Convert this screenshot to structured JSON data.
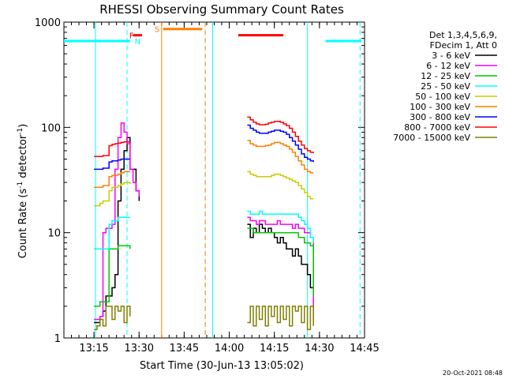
{
  "chart_data": {
    "type": "line",
    "title": "RHESSI Observing Summary Count Rates",
    "xlabel": "Start Time (30-Jun-13 13:05:02)",
    "ylabel_main": "Count Rate (s",
    "ylabel_sup1": "-1",
    "ylabel_mid": " detector",
    "ylabel_sup2": "-1",
    "ylabel_end": ")",
    "y_scale": "log",
    "ylim": [
      1,
      1000
    ],
    "xlim_minutes": [
      0,
      100
    ],
    "x_ticks": [
      {
        "label": "13:15",
        "min": 10
      },
      {
        "label": "13:30",
        "min": 25
      },
      {
        "label": "13:45",
        "min": 40
      },
      {
        "label": "14:00",
        "min": 55
      },
      {
        "label": "14:15",
        "min": 70
      },
      {
        "label": "14:30",
        "min": 85
      },
      {
        "label": "14:45",
        "min": 100
      }
    ],
    "y_ticks": [
      {
        "label": "1",
        "v": 1
      },
      {
        "label": "10",
        "v": 10
      },
      {
        "label": "100",
        "v": 100
      },
      {
        "label": "1000",
        "v": 1000
      }
    ],
    "legend_header": [
      "Det 1,3,4,5,6,9,",
      "FDecim 1, Att 0"
    ],
    "series": [
      {
        "name": "3 - 6 keV",
        "color": "#000000",
        "x": [
          10,
          11,
          12,
          13,
          14,
          16,
          17,
          18,
          19,
          20,
          21,
          22,
          24,
          25
        ],
        "y": [
          1.4,
          1.4,
          1.6,
          1.8,
          2.5,
          3,
          4,
          20,
          40,
          60,
          80,
          40,
          25,
          20
        ],
        "x2": [
          61,
          62,
          63,
          64,
          65,
          66,
          67,
          68,
          69,
          70,
          71,
          72,
          73,
          74,
          75,
          76,
          77,
          78,
          79,
          80,
          81,
          82,
          83
        ],
        "y2": [
          12,
          9,
          11,
          10,
          12,
          11,
          10,
          11,
          10,
          9,
          8,
          9,
          8,
          7,
          7,
          6,
          7,
          6,
          5,
          5,
          4,
          3,
          3
        ]
      },
      {
        "name": "6 - 12 keV",
        "color": "#ff00ff",
        "x": [
          10,
          11,
          12,
          13,
          14,
          15,
          16,
          17,
          18,
          19,
          20,
          21,
          22,
          23,
          24,
          25
        ],
        "y": [
          1.5,
          1.5,
          1.6,
          10,
          11,
          11,
          12,
          40,
          80,
          110,
          90,
          70,
          40,
          30,
          25,
          22
        ],
        "x2": [
          61,
          62,
          63,
          64,
          65,
          66,
          67,
          68,
          69,
          70,
          71,
          72,
          73,
          74,
          75,
          76,
          77,
          78,
          79,
          80,
          81,
          82,
          83
        ],
        "y2": [
          14,
          13,
          13,
          12,
          13,
          13,
          12,
          12,
          12,
          12,
          13,
          12,
          12,
          12,
          12,
          11,
          12,
          11,
          11,
          10,
          10,
          9,
          1.5
        ]
      },
      {
        "name": "12 - 25 keV",
        "color": "#00cc00",
        "x": [
          10,
          11,
          12,
          13,
          14,
          15,
          16,
          17,
          18,
          19,
          20,
          21,
          22
        ],
        "y": [
          2,
          2,
          2.2,
          2.2,
          2.2,
          7,
          7,
          7,
          7.5,
          7.5,
          7.5,
          7.5,
          7
        ],
        "x2": [
          61,
          62,
          63,
          64,
          65,
          66,
          67,
          68,
          69,
          70,
          71,
          72,
          73,
          74,
          75,
          76,
          77,
          78,
          79,
          80,
          81,
          82,
          83
        ],
        "y2": [
          11,
          11,
          10,
          10,
          10,
          10,
          10,
          10,
          10,
          10,
          10,
          10,
          10,
          10,
          10,
          10,
          10,
          9,
          9,
          8,
          8,
          7.5,
          2.5
        ]
      },
      {
        "name": "25 - 50 keV",
        "color": "#00ffff",
        "x": [
          10,
          11,
          12,
          13,
          14,
          15,
          16,
          17,
          18,
          19,
          20,
          21,
          22
        ],
        "y": [
          7,
          7,
          7,
          7,
          7,
          12,
          13,
          13,
          14,
          14,
          14,
          14,
          14
        ],
        "x2": [
          61,
          62,
          63,
          64,
          65,
          66,
          67,
          68,
          69,
          70,
          71,
          72,
          73,
          74,
          75,
          76,
          77,
          78,
          79,
          80,
          81,
          82,
          83
        ],
        "y2": [
          16,
          15,
          15,
          15,
          16,
          15,
          15,
          15,
          15,
          15,
          15,
          15,
          15,
          15,
          15,
          15,
          15,
          14,
          13,
          12,
          11,
          9,
          8
        ]
      },
      {
        "name": "50 - 100 keV",
        "color": "#cccc00",
        "x": [
          10,
          11,
          12,
          13,
          14,
          15,
          16,
          17,
          18,
          19,
          20,
          21,
          22
        ],
        "y": [
          18,
          18,
          19,
          20,
          20,
          25,
          27,
          27,
          28,
          29,
          30,
          30,
          29
        ],
        "x2": [
          61,
          62,
          63,
          64,
          65,
          66,
          67,
          68,
          69,
          70,
          71,
          72,
          73,
          74,
          75,
          76,
          77,
          78,
          79,
          80,
          81,
          82,
          83
        ],
        "y2": [
          38,
          36,
          35,
          34,
          34,
          34,
          34,
          34,
          35,
          36,
          36,
          35,
          34,
          33,
          32,
          31,
          30,
          28,
          26,
          24,
          22,
          21,
          21
        ]
      },
      {
        "name": "100 - 300 keV",
        "color": "#ff7f00",
        "x": [
          10,
          11,
          12,
          13,
          14,
          15,
          16,
          17,
          18,
          19,
          20,
          21,
          22
        ],
        "y": [
          27,
          27,
          27,
          28,
          28,
          34,
          35,
          35,
          36,
          37,
          38,
          38,
          38
        ],
        "x2": [
          61,
          62,
          63,
          64,
          65,
          66,
          67,
          68,
          69,
          70,
          71,
          72,
          73,
          74,
          75,
          76,
          77,
          78,
          79,
          80,
          81,
          82,
          83
        ],
        "y2": [
          75,
          70,
          68,
          66,
          66,
          66,
          67,
          68,
          70,
          72,
          72,
          70,
          68,
          66,
          62,
          58,
          53,
          48,
          44,
          40,
          38,
          37,
          37
        ]
      },
      {
        "name": "300 - 800 keV",
        "color": "#0000ff",
        "x": [
          10,
          11,
          12,
          13,
          14,
          15,
          16,
          17,
          18,
          19,
          20,
          21,
          22
        ],
        "y": [
          40,
          40,
          40,
          41,
          41,
          47,
          48,
          48,
          49,
          50,
          50,
          50,
          50
        ],
        "x2": [
          61,
          62,
          63,
          64,
          65,
          66,
          67,
          68,
          69,
          70,
          71,
          72,
          73,
          74,
          75,
          76,
          77,
          78,
          79,
          80,
          81,
          82,
          83
        ],
        "y2": [
          105,
          98,
          94,
          90,
          88,
          88,
          88,
          90,
          92,
          94,
          94,
          92,
          90,
          86,
          80,
          74,
          68,
          62,
          56,
          52,
          50,
          48,
          47
        ]
      },
      {
        "name": "800 - 7000 keV",
        "color": "#ff0000",
        "x": [
          10,
          11,
          12,
          13,
          14,
          15,
          16,
          17,
          18,
          19,
          20,
          21,
          22
        ],
        "y": [
          53,
          53,
          53,
          54,
          54,
          67,
          69,
          70,
          71,
          72,
          73,
          73,
          73
        ],
        "x2": [
          61,
          62,
          63,
          64,
          65,
          66,
          67,
          68,
          69,
          70,
          71,
          72,
          73,
          74,
          75,
          76,
          77,
          78,
          79,
          80,
          81,
          82,
          83
        ],
        "y2": [
          125,
          118,
          112,
          108,
          106,
          106,
          107,
          110,
          112,
          114,
          114,
          112,
          108,
          104,
          98,
          90,
          82,
          74,
          68,
          63,
          60,
          58,
          57
        ]
      },
      {
        "name": "7000 - 15000 keV",
        "color": "#808000",
        "x": [
          10,
          11,
          12,
          13,
          14,
          15,
          16,
          17,
          18,
          19,
          20,
          21,
          22
        ],
        "y": [
          1.2,
          1.3,
          1.5,
          1.3,
          2,
          2,
          1.5,
          2,
          1.8,
          2,
          1.4,
          2,
          1.6
        ],
        "x2": [
          61,
          62,
          63,
          64,
          65,
          66,
          67,
          68,
          69,
          70,
          71,
          72,
          73,
          74,
          75,
          76,
          77,
          78,
          79,
          80,
          81,
          82,
          83
        ],
        "y2": [
          1.4,
          2,
          1.3,
          2,
          1.5,
          2,
          1.3,
          2,
          1.6,
          2,
          1.4,
          2,
          1.5,
          2,
          1.3,
          2,
          1.8,
          2,
          1.4,
          2,
          1.2,
          2,
          1.3
        ]
      }
    ],
    "flags": [
      {
        "label": "F",
        "color": "#ff0000",
        "label_x": 22.5,
        "x": [
          23,
          26
        ],
        "level": 750
      },
      {
        "label": "N",
        "color": "#00ffff",
        "label_x": 24.5,
        "x": [
          0,
          22
        ],
        "level": 660
      },
      {
        "label": "S",
        "color": "#ff7f00",
        "label_x": 31,
        "x": [
          33,
          46
        ],
        "level": 860
      }
    ],
    "extra_flag_bars": [
      {
        "color": "#ff0000",
        "x": [
          58,
          73
        ],
        "level": 750
      },
      {
        "color": "#00ffff",
        "x": [
          87,
          99
        ],
        "level": 660
      }
    ],
    "vlines": [
      {
        "color": "#00ffff",
        "x": 10.5,
        "dash": false
      },
      {
        "color": "#00ffff",
        "x": 21,
        "dash": true
      },
      {
        "color": "#ff7f00",
        "x": 32.5,
        "dash": false
      },
      {
        "color": "#ff7f00",
        "x": 47,
        "dash": true
      },
      {
        "color": "#00ffff",
        "x": 49.5,
        "dash": false
      },
      {
        "color": "#00ffff",
        "x": 81,
        "dash": false
      },
      {
        "color": "#00ffff",
        "x": 98.5,
        "dash": true
      }
    ],
    "footer_date": "20-Oct-2021 08:48"
  }
}
